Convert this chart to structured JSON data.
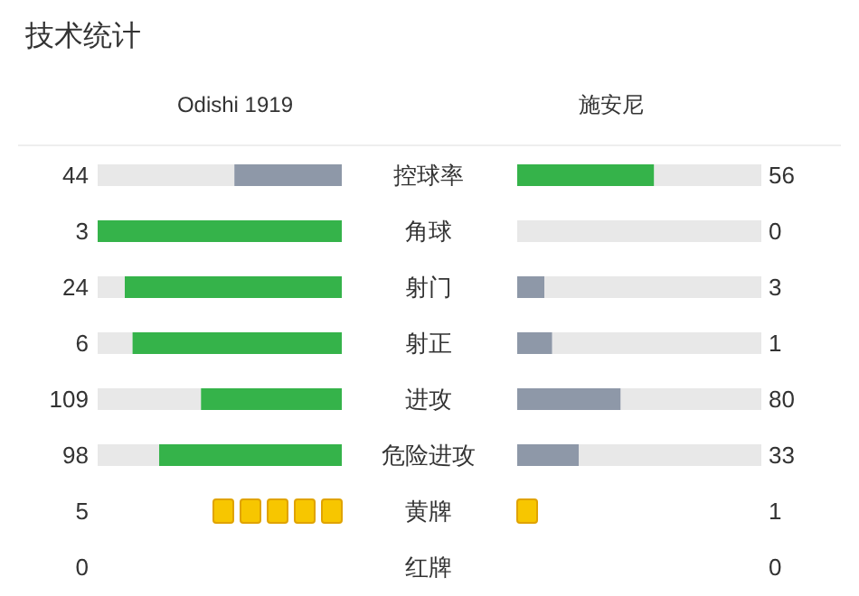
{
  "chart_data": [
    {
      "type": "other",
      "title": "技术统计",
      "data_labels": true,
      "categories": [
        "控球率",
        "角球",
        "射门",
        "射正",
        "进攻",
        "危险进攻"
      ],
      "series": [
        {
          "name": "Odishi 1919",
          "values": [
            44,
            3,
            24,
            6,
            109,
            98
          ],
          "colors": [
            "#8e98a8",
            "#35b34a",
            "#35b34a",
            "#35b34a",
            "#35b34a",
            "#35b34a"
          ]
        },
        {
          "name": "施安尼",
          "values": [
            56,
            0,
            3,
            1,
            80,
            33
          ],
          "colors": [
            "#35b34a",
            "#8e98a8",
            "#8e98a8",
            "#8e98a8",
            "#8e98a8",
            "#8e98a8"
          ]
        }
      ]
    },
    {
      "type": "other",
      "data_labels": true,
      "categories": [
        "黄牌",
        "红牌"
      ],
      "series": [
        {
          "values": [
            5,
            0
          ],
          "color": "#f7c600"
        },
        {
          "values": [
            1,
            0
          ],
          "color": "#f7c600"
        }
      ]
    }
  ]
}
